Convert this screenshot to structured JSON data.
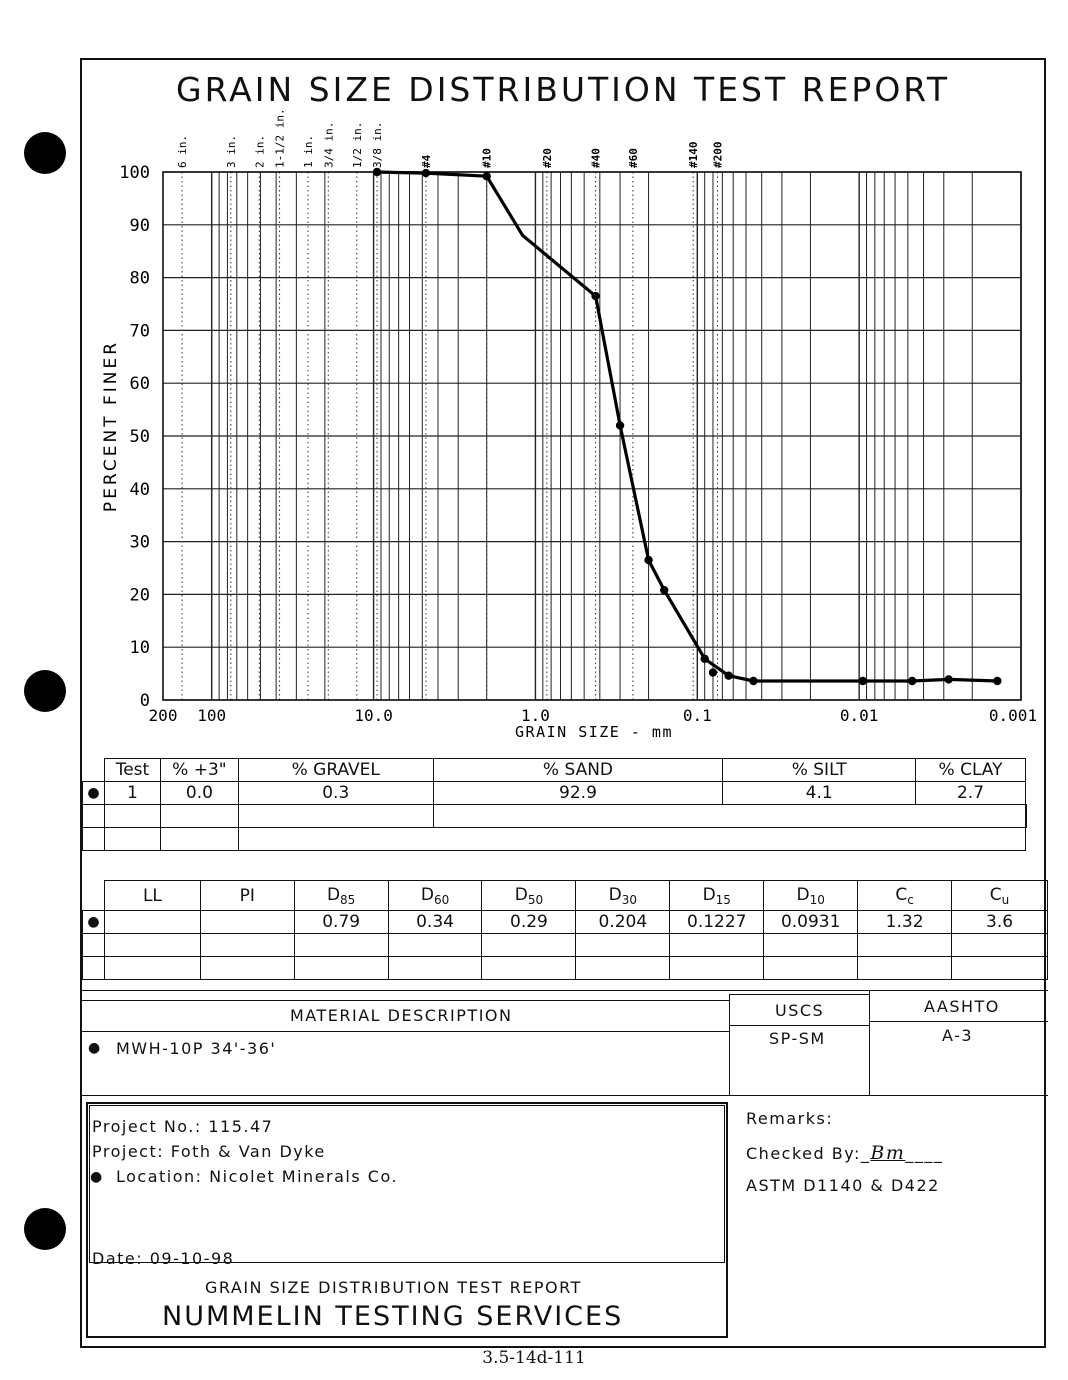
{
  "report": {
    "title": "GRAIN SIZE DISTRIBUTION TEST REPORT",
    "footer_code": "3.5-14d-111"
  },
  "chart_data": {
    "type": "line",
    "title": "GRAIN SIZE DISTRIBUTION TEST REPORT",
    "xlabel": "GRAIN SIZE - mm",
    "ylabel": "PERCENT FINER",
    "x_scale": "log",
    "x_reversed": true,
    "xlim": [
      200,
      0.001
    ],
    "ylim": [
      0,
      100
    ],
    "x_ticks": [
      {
        "value": 200,
        "label": "200"
      },
      {
        "value": 100,
        "label": "100"
      },
      {
        "value": 10,
        "label": "10.0"
      },
      {
        "value": 1,
        "label": "1.0"
      },
      {
        "value": 0.1,
        "label": "0.1"
      },
      {
        "value": 0.01,
        "label": "0.01"
      },
      {
        "value": 0.001,
        "label": "0.001"
      }
    ],
    "y_ticks": [
      0,
      10,
      20,
      30,
      40,
      50,
      60,
      70,
      80,
      90,
      100
    ],
    "sieves": [
      {
        "label": "6 in.",
        "size": 152.4
      },
      {
        "label": "3 in.",
        "size": 76.2
      },
      {
        "label": "2 in.",
        "size": 50.8
      },
      {
        "label": "1-1/2 in.",
        "size": 38.1
      },
      {
        "label": "1 in.",
        "size": 25.4
      },
      {
        "label": "3/4 in.",
        "size": 19.05
      },
      {
        "label": "1/2 in.",
        "size": 12.7
      },
      {
        "label": "3/8 in.",
        "size": 9.525
      },
      {
        "label": "#4",
        "size": 4.75
      },
      {
        "label": "#10",
        "size": 2.0
      },
      {
        "label": "#20",
        "size": 0.85
      },
      {
        "label": "#40",
        "size": 0.425
      },
      {
        "label": "#60",
        "size": 0.25
      },
      {
        "label": "#140",
        "size": 0.106
      },
      {
        "label": "#200",
        "size": 0.075
      }
    ],
    "grid": true,
    "series": [
      {
        "points": [
          {
            "x": 9.525,
            "y": 100.0,
            "marker": true
          },
          {
            "x": 4.75,
            "y": 99.8,
            "marker": true
          },
          {
            "x": 2.0,
            "y": 99.2,
            "marker": true
          },
          {
            "x": 1.2,
            "y": 88.0,
            "marker": false
          },
          {
            "x": 0.425,
            "y": 76.5,
            "marker": true
          },
          {
            "x": 0.3,
            "y": 52.0,
            "marker": true
          },
          {
            "x": 0.2,
            "y": 26.5,
            "marker": true
          },
          {
            "x": 0.16,
            "y": 20.8,
            "marker": true
          },
          {
            "x": 0.09,
            "y": 7.8,
            "marker": true
          },
          {
            "x": 0.064,
            "y": 4.6,
            "marker": true
          },
          {
            "x": 0.045,
            "y": 3.6,
            "marker": true
          },
          {
            "x": 0.0095,
            "y": 3.6,
            "marker": true
          },
          {
            "x": 0.0047,
            "y": 3.6,
            "marker": true
          },
          {
            "x": 0.0028,
            "y": 3.9,
            "marker": true
          },
          {
            "x": 0.0014,
            "y": 3.6,
            "marker": true
          }
        ],
        "extra_points": [
          {
            "x": 0.08,
            "y": 5.2
          }
        ]
      }
    ]
  },
  "summary_table": {
    "headers": [
      "Test",
      "% +3\"",
      "% GRAVEL",
      "% SAND",
      "% SILT",
      "% CLAY"
    ],
    "rows": [
      [
        "1",
        "0.0",
        "0.3",
        "92.9",
        "4.1",
        "2.7"
      ]
    ],
    "row_marker": "●"
  },
  "params_table": {
    "headers": [
      {
        "main": "LL",
        "sub": ""
      },
      {
        "main": "PI",
        "sub": ""
      },
      {
        "main": "D",
        "sub": "85"
      },
      {
        "main": "D",
        "sub": "60"
      },
      {
        "main": "D",
        "sub": "50"
      },
      {
        "main": "D",
        "sub": "30"
      },
      {
        "main": "D",
        "sub": "15"
      },
      {
        "main": "D",
        "sub": "10"
      },
      {
        "main": "C",
        "sub": "c"
      },
      {
        "main": "C",
        "sub": "u"
      }
    ],
    "rows": [
      [
        "",
        "",
        "0.79",
        "0.34",
        "0.29",
        "0.204",
        "0.1227",
        "0.0931",
        "1.32",
        "3.6"
      ]
    ],
    "row_marker": "●"
  },
  "material": {
    "header": "MATERIAL DESCRIPTION",
    "uscs_label": "USCS",
    "aashto_label": "AASHTO",
    "description": "MWH-10P 34'-36'",
    "uscs": "SP-SM",
    "aashto": "A-3",
    "row_marker": "●"
  },
  "project": {
    "number_line": "Project No.: 115.47",
    "project_line": "Project: Foth & Van Dyke",
    "location_line": "Location: Nicolet Minerals Co.",
    "date_line": "Date: 09-10-98",
    "marker": "●"
  },
  "remarks": {
    "label": "Remarks:",
    "checked_by": "Checked By:_",
    "initials": "Bm",
    "trailing": "____",
    "standard": "ASTM D1140 & D422"
  },
  "company": {
    "report_title": "GRAIN SIZE DISTRIBUTION TEST REPORT",
    "name": "NUMMELIN TESTING SERVICES"
  }
}
